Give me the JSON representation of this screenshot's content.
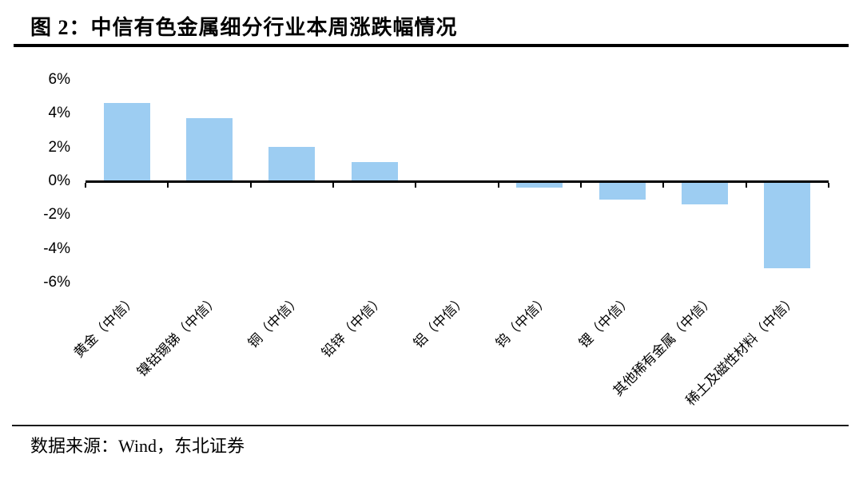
{
  "title": {
    "label": "图 2：中信有色金属细分行业本周涨跌幅情况"
  },
  "footer": {
    "source_label": "数据来源：Wind，东北证券"
  },
  "chart_data": {
    "type": "bar",
    "title": "中信有色金属细分行业本周涨跌幅情况",
    "categories": [
      "黄金（中信）",
      "镍钴锡锑（中信）",
      "铜（中信）",
      "铅锌（中信）",
      "铝（中信）",
      "钨（中信）",
      "锂（中信）",
      "其他稀有金属（中信）",
      "稀土及磁性材料（中信）"
    ],
    "values": [
      4.6,
      3.7,
      2.0,
      1.1,
      0.0,
      -0.3,
      -1.0,
      -1.3,
      -5.1
    ],
    "value_unit": "%",
    "y_ticks": [
      "6%",
      "4%",
      "2%",
      "0%",
      "-2%",
      "-4%",
      "-6%"
    ],
    "y_tick_values": [
      6,
      4,
      2,
      0,
      -2,
      -4,
      -6
    ],
    "ylim": [
      -6,
      6
    ],
    "xlabel": "",
    "ylabel": "",
    "grid": false,
    "legend": false,
    "bar_color": "#9DCDF2",
    "axis_color": "#000000"
  }
}
